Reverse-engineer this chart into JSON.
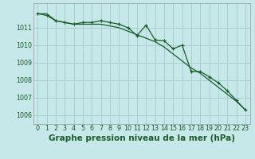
{
  "title": "Graphe pression niveau de la mer (hPa)",
  "bg_color": "#c6e8e8",
  "grid_color": "#aacfcf",
  "line_color": "#1a5c2a",
  "x_labels": [
    "0",
    "1",
    "2",
    "3",
    "4",
    "5",
    "6",
    "7",
    "8",
    "9",
    "10",
    "11",
    "12",
    "13",
    "14",
    "15",
    "16",
    "17",
    "18",
    "19",
    "20",
    "21",
    "22",
    "23"
  ],
  "series_smooth": [
    1011.8,
    1011.8,
    1011.4,
    1011.3,
    1011.2,
    1011.2,
    1011.2,
    1011.2,
    1011.1,
    1011.0,
    1010.8,
    1010.6,
    1010.4,
    1010.2,
    1009.9,
    1009.5,
    1009.1,
    1008.7,
    1008.4,
    1008.0,
    1007.6,
    1007.2,
    1006.8,
    1006.3
  ],
  "series_markers": [
    1011.8,
    1011.7,
    1011.4,
    1011.3,
    1011.2,
    1011.3,
    1011.3,
    1011.4,
    1011.3,
    1011.2,
    1011.0,
    1010.55,
    1011.15,
    1010.3,
    1010.25,
    1009.8,
    1010.0,
    1008.5,
    1008.5,
    1008.2,
    1007.85,
    1007.4,
    1006.85,
    1006.3
  ],
  "ylim_min": 1005.5,
  "ylim_max": 1012.4,
  "yticks": [
    1006,
    1007,
    1008,
    1009,
    1010,
    1011
  ],
  "title_fontsize": 7.5,
  "tick_fontsize": 5.8,
  "figwidth": 3.2,
  "figheight": 2.0,
  "dpi": 100
}
